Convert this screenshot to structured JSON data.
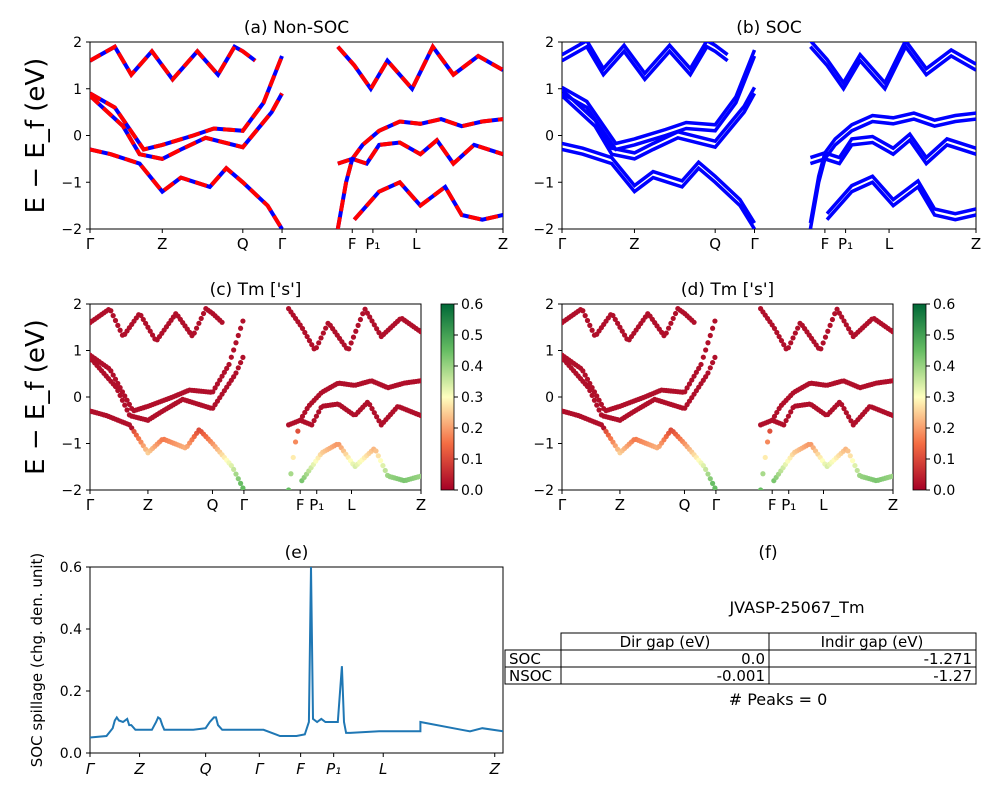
{
  "shared": {
    "ylabel": "E − E_f (eV)",
    "ylim": [
      -2,
      2
    ],
    "yticks": [
      "2",
      "1",
      "0",
      "−1",
      "−2"
    ],
    "kpath_labels": [
      "Γ",
      "Z",
      "Q",
      "Γ",
      "F",
      "P₁",
      "L",
      "Z"
    ]
  },
  "panels": {
    "a": {
      "title": "(a) Non-SOC"
    },
    "b": {
      "title": "(b) SOC"
    },
    "c": {
      "title": "(c)  Tm ['s']"
    },
    "d": {
      "title": "(d) Tm ['s']"
    },
    "e": {
      "title": "(e)"
    },
    "f": {
      "title": "(f)"
    }
  },
  "colorbar": {
    "colormap": "RdYlGn",
    "ticks": [
      "0.6",
      "0.5",
      "0.4",
      "0.3",
      "0.2",
      "0.1",
      "0.0"
    ]
  },
  "spillage": {
    "ylabel": "SOC spillage (chg. den. unit)",
    "yticks": [
      "0.6",
      "0.4",
      "0.2",
      "0.0"
    ],
    "xticks": [
      "Γ",
      "Z",
      "Q",
      "Γ",
      "F",
      "P₁",
      "L",
      "Z"
    ]
  },
  "info": {
    "material": "JVASP-25067_Tm",
    "table": {
      "col_headers": [
        "Dir gap (eV)",
        "Indir gap (eV)"
      ],
      "rows": [
        {
          "label": "SOC",
          "dir": "0.0",
          "indir": "-1.271"
        },
        {
          "label": "NSOC",
          "dir": "-0.001",
          "indir": "-1.27"
        }
      ]
    },
    "peaks": "# Peaks = 0"
  },
  "colors": {
    "nonsoc_red": "#ff0000",
    "nonsoc_blue": "#0000ff",
    "soc_blue": "#0000ff",
    "spillage_line": "#1f77b4"
  },
  "chart_data": [
    {
      "type": "line",
      "panel": "a",
      "title": "(a) Non-SOC",
      "ylabel": "E − E_f (eV)",
      "ylim": [
        -2,
        2
      ],
      "x_ticks": [
        0,
        0.175,
        0.37,
        0.465,
        0.635,
        0.685,
        0.79,
        1.0
      ],
      "x_tick_labels": [
        "Γ",
        "Z",
        "Q",
        "Γ",
        "F",
        "P₁",
        "L",
        "Z"
      ],
      "series": [
        {
          "values": [
            [
              0,
              0.9
            ],
            [
              0.06,
              0.6
            ],
            [
              0.13,
              -0.3
            ],
            [
              0.175,
              -0.2
            ],
            [
              0.25,
              0.0
            ],
            [
              0.3,
              0.15
            ],
            [
              0.37,
              0.1
            ],
            [
              0.42,
              0.7
            ],
            [
              0.465,
              1.7
            ]
          ]
        },
        {
          "values": [
            [
              0,
              0.85
            ],
            [
              0.08,
              0.2
            ],
            [
              0.12,
              -0.4
            ],
            [
              0.175,
              -0.5
            ],
            [
              0.22,
              -0.3
            ],
            [
              0.28,
              -0.05
            ],
            [
              0.37,
              -0.25
            ],
            [
              0.44,
              0.5
            ],
            [
              0.465,
              0.9
            ]
          ]
        },
        {
          "values": [
            [
              0,
              -0.3
            ],
            [
              0.05,
              -0.4
            ],
            [
              0.12,
              -0.6
            ],
            [
              0.175,
              -1.2
            ],
            [
              0.22,
              -0.9
            ],
            [
              0.29,
              -1.1
            ],
            [
              0.33,
              -0.7
            ],
            [
              0.37,
              -1.0
            ],
            [
              0.43,
              -1.5
            ],
            [
              0.465,
              -2.0
            ]
          ]
        },
        {
          "values": [
            [
              0,
              1.6
            ],
            [
              0.06,
              1.9
            ],
            [
              0.1,
              1.3
            ],
            [
              0.15,
              1.8
            ],
            [
              0.2,
              1.2
            ],
            [
              0.26,
              1.8
            ],
            [
              0.31,
              1.3
            ],
            [
              0.35,
              1.9
            ],
            [
              0.37,
              1.8
            ],
            [
              0.4,
              1.6
            ]
          ]
        },
        {
          "values": [
            [
              0.6,
              -2.0
            ],
            [
              0.62,
              -1.0
            ],
            [
              0.635,
              -0.5
            ],
            [
              0.66,
              -0.2
            ],
            [
              0.7,
              0.1
            ],
            [
              0.75,
              0.3
            ],
            [
              0.8,
              0.25
            ],
            [
              0.85,
              0.35
            ],
            [
              0.9,
              0.2
            ],
            [
              0.95,
              0.3
            ],
            [
              1.0,
              0.35
            ]
          ]
        },
        {
          "values": [
            [
              0.6,
              -0.6
            ],
            [
              0.635,
              -0.5
            ],
            [
              0.67,
              -0.6
            ],
            [
              0.7,
              -0.2
            ],
            [
              0.75,
              -0.15
            ],
            [
              0.8,
              -0.4
            ],
            [
              0.84,
              -0.1
            ],
            [
              0.88,
              -0.6
            ],
            [
              0.93,
              -0.2
            ],
            [
              1.0,
              -0.4
            ]
          ]
        },
        {
          "values": [
            [
              0.6,
              1.9
            ],
            [
              0.64,
              1.5
            ],
            [
              0.68,
              1.0
            ],
            [
              0.72,
              1.6
            ],
            [
              0.78,
              1.0
            ],
            [
              0.83,
              1.9
            ],
            [
              0.88,
              1.3
            ],
            [
              0.94,
              1.7
            ],
            [
              1.0,
              1.4
            ]
          ]
        },
        {
          "values": [
            [
              0.64,
              -1.8
            ],
            [
              0.7,
              -1.2
            ],
            [
              0.75,
              -1.0
            ],
            [
              0.8,
              -1.5
            ],
            [
              0.86,
              -1.1
            ],
            [
              0.9,
              -1.7
            ],
            [
              0.95,
              -1.8
            ],
            [
              1.0,
              -1.7
            ]
          ]
        }
      ]
    },
    {
      "type": "line",
      "panel": "b",
      "title": "(b) SOC",
      "ylim": [
        -2,
        2
      ],
      "x_tick_labels": [
        "Γ",
        "Z",
        "Q",
        "Γ",
        "F",
        "P₁",
        "L",
        "Z"
      ],
      "series": [
        {
          "values": [
            [
              0,
              0.9
            ],
            [
              0.06,
              0.6
            ],
            [
              0.13,
              -0.3
            ],
            [
              0.175,
              -0.2
            ],
            [
              0.25,
              0.0
            ],
            [
              0.3,
              0.15
            ],
            [
              0.37,
              0.1
            ],
            [
              0.42,
              0.7
            ],
            [
              0.465,
              1.7
            ]
          ]
        },
        {
          "values": [
            [
              0,
              0.85
            ],
            [
              0.08,
              0.2
            ],
            [
              0.12,
              -0.4
            ],
            [
              0.175,
              -0.5
            ],
            [
              0.22,
              -0.3
            ],
            [
              0.28,
              -0.05
            ],
            [
              0.37,
              -0.25
            ],
            [
              0.44,
              0.5
            ],
            [
              0.465,
              0.9
            ]
          ]
        },
        {
          "values": [
            [
              0,
              -0.3
            ],
            [
              0.05,
              -0.4
            ],
            [
              0.12,
              -0.6
            ],
            [
              0.175,
              -1.2
            ],
            [
              0.22,
              -0.9
            ],
            [
              0.29,
              -1.1
            ],
            [
              0.33,
              -0.7
            ],
            [
              0.37,
              -1.0
            ],
            [
              0.43,
              -1.5
            ],
            [
              0.465,
              -2.0
            ]
          ]
        },
        {
          "values": [
            [
              0,
              1.6
            ],
            [
              0.06,
              1.9
            ],
            [
              0.1,
              1.3
            ],
            [
              0.15,
              1.8
            ],
            [
              0.2,
              1.2
            ],
            [
              0.26,
              1.8
            ],
            [
              0.31,
              1.3
            ],
            [
              0.35,
              1.9
            ],
            [
              0.37,
              1.8
            ],
            [
              0.4,
              1.6
            ]
          ]
        },
        {
          "values": [
            [
              0.6,
              -2.0
            ],
            [
              0.62,
              -1.0
            ],
            [
              0.635,
              -0.5
            ],
            [
              0.66,
              -0.2
            ],
            [
              0.7,
              0.1
            ],
            [
              0.75,
              0.3
            ],
            [
              0.8,
              0.25
            ],
            [
              0.85,
              0.35
            ],
            [
              0.9,
              0.2
            ],
            [
              0.95,
              0.3
            ],
            [
              1.0,
              0.35
            ]
          ]
        },
        {
          "values": [
            [
              0.6,
              -0.6
            ],
            [
              0.635,
              -0.5
            ],
            [
              0.67,
              -0.6
            ],
            [
              0.7,
              -0.2
            ],
            [
              0.75,
              -0.15
            ],
            [
              0.8,
              -0.4
            ],
            [
              0.84,
              -0.1
            ],
            [
              0.88,
              -0.6
            ],
            [
              0.93,
              -0.2
            ],
            [
              1.0,
              -0.4
            ]
          ]
        },
        {
          "values": [
            [
              0.6,
              1.9
            ],
            [
              0.64,
              1.5
            ],
            [
              0.68,
              1.0
            ],
            [
              0.72,
              1.6
            ],
            [
              0.78,
              1.0
            ],
            [
              0.83,
              1.9
            ],
            [
              0.88,
              1.3
            ],
            [
              0.94,
              1.7
            ],
            [
              1.0,
              1.4
            ]
          ]
        },
        {
          "values": [
            [
              0.64,
              -1.8
            ],
            [
              0.7,
              -1.2
            ],
            [
              0.75,
              -1.0
            ],
            [
              0.8,
              -1.5
            ],
            [
              0.86,
              -1.1
            ],
            [
              0.9,
              -1.7
            ],
            [
              0.95,
              -1.8
            ],
            [
              1.0,
              -1.7
            ]
          ]
        }
      ]
    },
    {
      "type": "line",
      "panel": "e",
      "title": "(e)",
      "ylabel": "SOC spillage (chg. den. unit)",
      "ylim": [
        0,
        0.6
      ],
      "x_tick_labels": [
        "Γ",
        "Z",
        "Q",
        "Γ",
        "F",
        "P₁",
        "L",
        "Z"
      ],
      "x": [
        0,
        0.04,
        0.055,
        0.06,
        0.065,
        0.07,
        0.08,
        0.09,
        0.095,
        0.1,
        0.11,
        0.12,
        0.15,
        0.16,
        0.165,
        0.17,
        0.175,
        0.18,
        0.2,
        0.25,
        0.28,
        0.29,
        0.3,
        0.305,
        0.31,
        0.32,
        0.35,
        0.42,
        0.45,
        0.46,
        0.5,
        0.52,
        0.53,
        0.535,
        0.54,
        0.55,
        0.56,
        0.57,
        0.6,
        0.61,
        0.615,
        0.62,
        0.63,
        0.7,
        0.75,
        0.8,
        0.8,
        0.9,
        0.92,
        0.95,
        1.0
      ],
      "values": [
        0.05,
        0.055,
        0.08,
        0.105,
        0.115,
        0.105,
        0.1,
        0.11,
        0.09,
        0.09,
        0.075,
        0.075,
        0.075,
        0.1,
        0.115,
        0.11,
        0.09,
        0.075,
        0.075,
        0.075,
        0.08,
        0.1,
        0.115,
        0.115,
        0.09,
        0.075,
        0.075,
        0.075,
        0.06,
        0.055,
        0.055,
        0.06,
        0.1,
        0.6,
        0.11,
        0.1,
        0.11,
        0.1,
        0.1,
        0.28,
        0.1,
        0.065,
        0.065,
        0.07,
        0.07,
        0.07,
        0.1,
        0.075,
        0.07,
        0.08,
        0.07
      ]
    }
  ]
}
